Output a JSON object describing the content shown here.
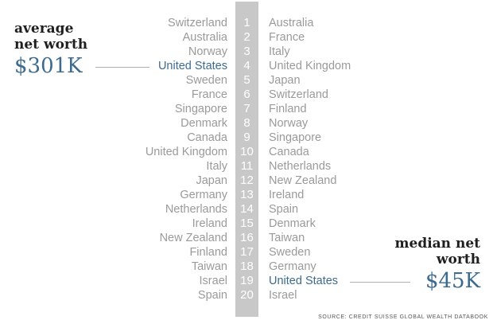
{
  "chart_data": {
    "type": "table",
    "ranks": [
      "1",
      "2",
      "3",
      "4",
      "5",
      "6",
      "7",
      "8",
      "9",
      "10",
      "11",
      "12",
      "13",
      "14",
      "15",
      "16",
      "17",
      "18",
      "19",
      "20"
    ],
    "series": [
      {
        "name": "average net worth",
        "headline_value": "$301K",
        "countries": [
          "Switzerland",
          "Australia",
          "Norway",
          "United States",
          "Sweden",
          "France",
          "Singapore",
          "Denmark",
          "Canada",
          "United Kingdom",
          "Italy",
          "Japan",
          "Germany",
          "Netherlands",
          "Ireland",
          "New Zealand",
          "Finland",
          "Taiwan",
          "Israel",
          "Spain"
        ]
      },
      {
        "name": "median net worth",
        "headline_value": "$45K",
        "countries": [
          "Australia",
          "France",
          "Italy",
          "United Kingdom",
          "Japan",
          "Switzerland",
          "Finland",
          "Norway",
          "Singapore",
          "Canada",
          "Netherlands",
          "New Zealand",
          "Ireland",
          "Spain",
          "Denmark",
          "Taiwan",
          "Sweden",
          "Germany",
          "United States",
          "Israel"
        ]
      }
    ],
    "highlight_country": "United States",
    "source": "SOURCE: CREDIT SUISSE GLOBAL WEALTH DATABOOK"
  },
  "colors": {
    "highlight": "#3d6b8f",
    "muted_text": "#9a9a9a",
    "rank_bar": "#c8c8c8",
    "label": "#1f1f1f"
  }
}
